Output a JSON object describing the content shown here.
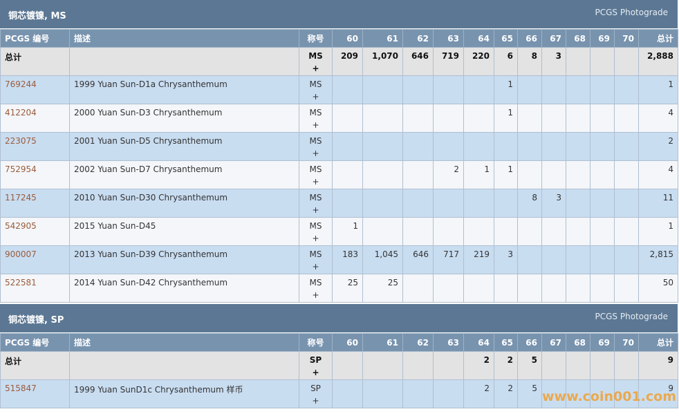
{
  "sections": [
    {
      "title": "铜芯镀镍, MS",
      "subtitle": "PCGS Photograde",
      "columns": [
        "PCGS 编号",
        "描述",
        "称号",
        "60",
        "61",
        "62",
        "63",
        "64",
        "65",
        "66",
        "67",
        "68",
        "69",
        "70",
        "总计"
      ],
      "total": {
        "label": "总计",
        "designation": "MS",
        "plus": "+",
        "counts": [
          "209",
          "1,070",
          "646",
          "719",
          "220",
          "6",
          "8",
          "3",
          null,
          null,
          null
        ],
        "total": "2,888"
      },
      "rows": [
        {
          "pcgs": "769244",
          "desc": "1999 Yuan Sun-D1a Chrysanthemum",
          "designation": "MS",
          "plus": "+",
          "counts": [
            null,
            null,
            null,
            null,
            null,
            "1",
            null,
            null,
            null,
            null,
            null
          ],
          "total": "1"
        },
        {
          "pcgs": "412204",
          "desc": "2000 Yuan Sun-D3 Chrysanthemum",
          "designation": "MS",
          "plus": "+",
          "counts": [
            null,
            null,
            null,
            null,
            null,
            "1",
            null,
            null,
            null,
            null,
            null
          ],
          "total": "4"
        },
        {
          "pcgs": "223075",
          "desc": "2001 Yuan Sun-D5 Chrysanthemum",
          "designation": "MS",
          "plus": "+",
          "counts": [
            null,
            null,
            null,
            null,
            null,
            null,
            null,
            null,
            null,
            null,
            null
          ],
          "total": "2"
        },
        {
          "pcgs": "752954",
          "desc": "2002 Yuan Sun-D7 Chrysanthemum",
          "designation": "MS",
          "plus": "+",
          "counts": [
            null,
            null,
            null,
            "2",
            "1",
            "1",
            null,
            null,
            null,
            null,
            null
          ],
          "total": "4"
        },
        {
          "pcgs": "117245",
          "desc": "2010 Yuan Sun-D30 Chrysanthemum",
          "designation": "MS",
          "plus": "+",
          "counts": [
            null,
            null,
            null,
            null,
            null,
            null,
            "8",
            "3",
            null,
            null,
            null
          ],
          "total": "11"
        },
        {
          "pcgs": "542905",
          "desc": "2015 Yuan Sun-D45",
          "designation": "MS",
          "plus": "+",
          "counts": [
            "1",
            null,
            null,
            null,
            null,
            null,
            null,
            null,
            null,
            null,
            null
          ],
          "total": "1"
        },
        {
          "pcgs": "900007",
          "desc": "2013 Yuan Sun-D39 Chrysanthemum",
          "designation": "MS",
          "plus": "+",
          "counts": [
            "183",
            "1,045",
            "646",
            "717",
            "219",
            "3",
            null,
            null,
            null,
            null,
            null
          ],
          "total": "2,815"
        },
        {
          "pcgs": "522581",
          "desc": "2014 Yuan Sun-D42 Chrysanthemum",
          "designation": "MS",
          "plus": "+",
          "counts": [
            "25",
            "25",
            null,
            null,
            null,
            null,
            null,
            null,
            null,
            null,
            null
          ],
          "total": "50"
        }
      ]
    },
    {
      "title": "铜芯镀镍, SP",
      "subtitle": "PCGS Photograde",
      "columns": [
        "PCGS 编号",
        "描述",
        "称号",
        "60",
        "61",
        "62",
        "63",
        "64",
        "65",
        "66",
        "67",
        "68",
        "69",
        "70",
        "总计"
      ],
      "total": {
        "label": "总计",
        "designation": "SP",
        "plus": "+",
        "counts": [
          null,
          null,
          null,
          null,
          "2",
          "2",
          "5",
          null,
          null,
          null,
          null
        ],
        "total": "9"
      },
      "rows": [
        {
          "pcgs": "515847",
          "desc": "1999 Yuan SunD1c Chrysanthemum 样币",
          "designation": "SP",
          "plus": "+",
          "counts": [
            null,
            null,
            null,
            null,
            "2",
            "2",
            "5",
            null,
            null,
            null,
            null
          ],
          "total": "9"
        }
      ]
    }
  ],
  "watermark": "www.coin001.com"
}
